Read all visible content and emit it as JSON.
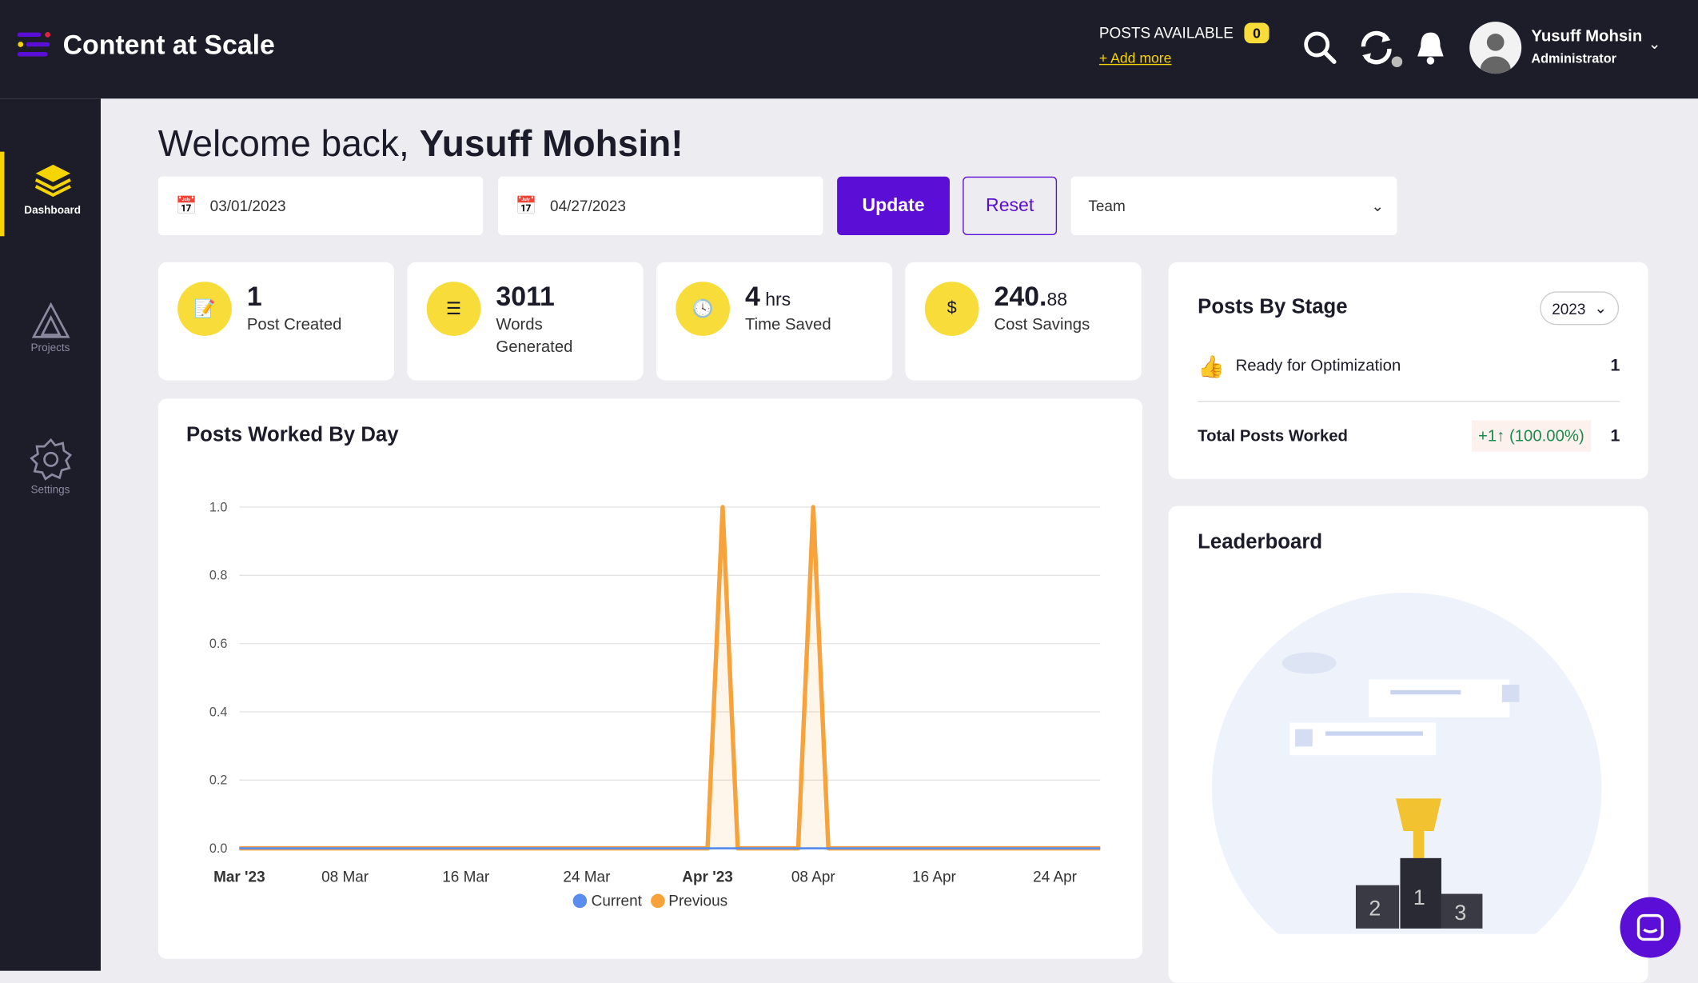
{
  "header": {
    "app_name": "Content at Scale",
    "posts_available_label": "POSTS AVAILABLE",
    "posts_available_count": "0",
    "add_more": "+ Add more",
    "user_name": "Yusuff Mohsin",
    "user_role": "Administrator"
  },
  "sidebar": {
    "items": [
      {
        "label": "Dashboard",
        "icon": "layers-icon",
        "active": true
      },
      {
        "label": "Projects",
        "icon": "triangle-icon"
      },
      {
        "label": "Settings",
        "icon": "gear-icon"
      }
    ]
  },
  "welcome": {
    "prefix": "Welcome back, ",
    "name": "Yusuff Mohsin!"
  },
  "filters": {
    "start_date": "03/01/2023",
    "end_date": "04/27/2023",
    "update": "Update",
    "reset": "Reset",
    "team": "Team"
  },
  "stats": [
    {
      "value": "1",
      "unit": "",
      "label": "Post Created"
    },
    {
      "value": "3011",
      "unit": "",
      "label": "Words Generated"
    },
    {
      "value": "4",
      "unit": " hrs",
      "label": "Time Saved"
    },
    {
      "value": "240.",
      "unit": "88",
      "label": "Cost Savings"
    }
  ],
  "posts_by_stage": {
    "title": "Posts By Stage",
    "year": "2023",
    "stage": "Ready for Optimization",
    "stage_count": "1",
    "total_label": "Total Posts Worked",
    "change": "+1↑ (100.00%)",
    "total": "1"
  },
  "leaderboard": {
    "title": "Leaderboard"
  },
  "colors": {
    "accent": "#5b0fd6",
    "yellow": "#f7dc3a",
    "current": "#5b8def",
    "previous": "#f7a23b"
  },
  "chart_data": {
    "type": "area",
    "title": "Posts Worked By Day",
    "x_start": "2023-03-01",
    "days": 58,
    "x_ticks": [
      {
        "day": 0,
        "label": "Mar '23",
        "bold": true
      },
      {
        "day": 7,
        "label": "08 Mar"
      },
      {
        "day": 15,
        "label": "16 Mar"
      },
      {
        "day": 23,
        "label": "24 Mar"
      },
      {
        "day": 31,
        "label": "Apr '23",
        "bold": true
      },
      {
        "day": 38,
        "label": "08 Apr"
      },
      {
        "day": 46,
        "label": "16 Apr"
      },
      {
        "day": 54,
        "label": "24 Apr"
      }
    ],
    "y_ticks": [
      "0.0",
      "0.2",
      "0.4",
      "0.6",
      "0.8",
      "1.0"
    ],
    "ylim": [
      0,
      1
    ],
    "series": [
      {
        "name": "Current",
        "points": []
      },
      {
        "name": "Previous",
        "points": [
          {
            "day": 32,
            "value": 1
          },
          {
            "day": 38,
            "value": 1
          }
        ]
      }
    ],
    "legend": "bottom"
  }
}
